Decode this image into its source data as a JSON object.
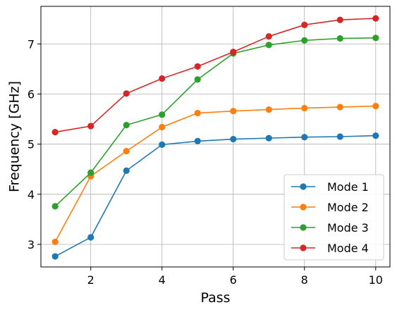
{
  "chart_data": {
    "type": "line",
    "xlabel": "Pass",
    "ylabel": "Frequency [GHz]",
    "xlim": [
      0.6,
      10.4
    ],
    "ylim": [
      2.55,
      7.75
    ],
    "xticks": [
      2,
      4,
      6,
      8,
      10
    ],
    "yticks": [
      3,
      4,
      5,
      6,
      7
    ],
    "grid": true,
    "legend_position": "lower-right",
    "x": [
      1,
      2,
      3,
      4,
      5,
      6,
      7,
      8,
      9,
      10
    ],
    "series": [
      {
        "name": "Mode 1",
        "color": "#1f77b4",
        "values": [
          2.76,
          3.14,
          4.47,
          4.99,
          5.06,
          5.1,
          5.12,
          5.14,
          5.15,
          5.17
        ]
      },
      {
        "name": "Mode 2",
        "color": "#ff7f0e",
        "values": [
          3.05,
          4.36,
          4.86,
          5.34,
          5.62,
          5.66,
          5.69,
          5.72,
          5.74,
          5.76
        ]
      },
      {
        "name": "Mode 3",
        "color": "#2ca02c",
        "values": [
          3.76,
          4.43,
          5.38,
          5.59,
          6.29,
          6.81,
          6.98,
          7.07,
          7.11,
          7.12
        ]
      },
      {
        "name": "Mode 4",
        "color": "#d62728",
        "values": [
          5.24,
          5.36,
          6.01,
          6.31,
          6.55,
          6.84,
          7.15,
          7.38,
          7.48,
          7.51
        ]
      }
    ]
  }
}
